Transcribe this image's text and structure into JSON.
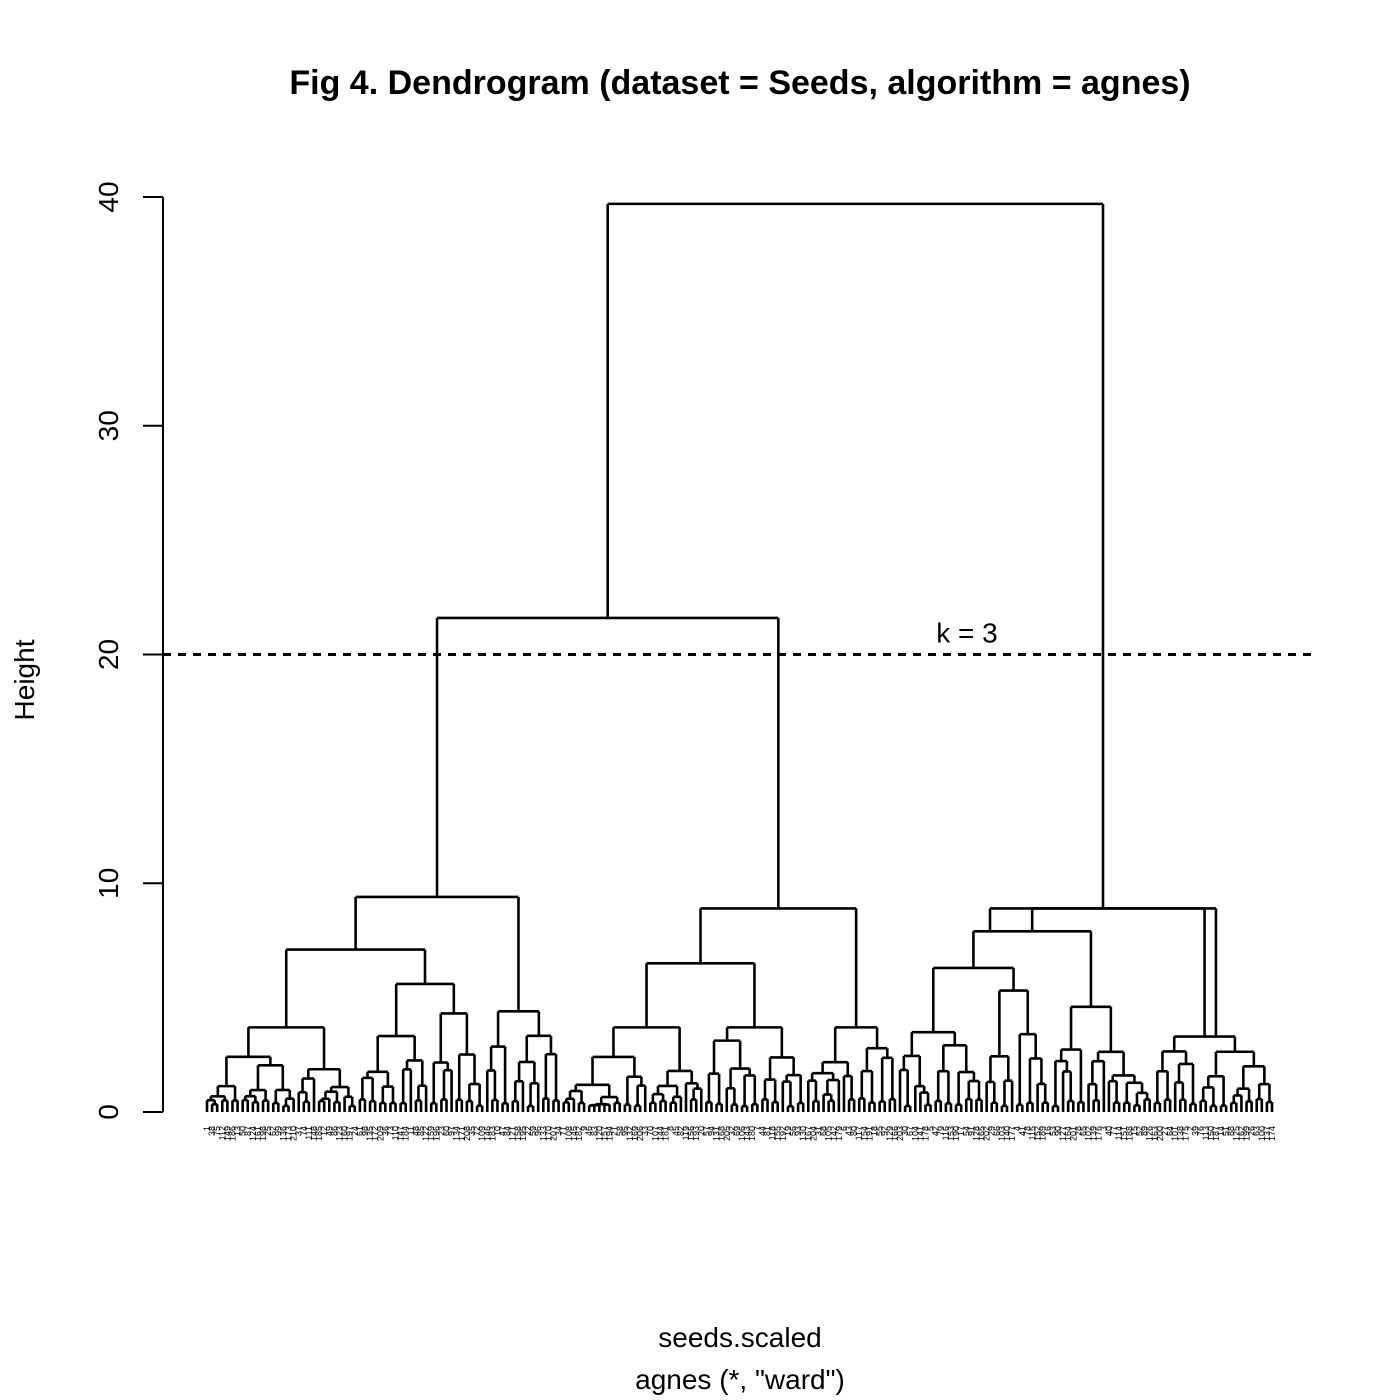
{
  "chart_data": {
    "type": "dendrogram",
    "title": "Fig 4. Dendrogram (dataset = Seeds, algorithm = agnes)",
    "ylabel": "Height",
    "xlabel": "seeds.scaled",
    "sublabel": "agnes (*, \"ward\")",
    "ylim": [
      0,
      40
    ],
    "yticks": [
      "0",
      "10",
      "20",
      "30",
      "40"
    ],
    "n_leaves": 210,
    "cut": {
      "height": 20,
      "label": "k = 3"
    },
    "merges": [
      {
        "height": 39.7,
        "note": "root: joins the left two clusters with the right cluster"
      },
      {
        "height": 21.6,
        "note": "joins the left and middle clusters"
      },
      {
        "height": 9.4,
        "note": "left cluster"
      },
      {
        "height": 8.9,
        "note": "middle cluster"
      },
      {
        "height": 8.9,
        "note": "right cluster"
      },
      {
        "height": 7.1
      },
      {
        "height": 6.5
      },
      {
        "height": 5.6
      },
      {
        "height": 4.4
      },
      {
        "height": 3.7
      },
      {
        "height": 3.7
      },
      {
        "height": 2.9
      },
      {
        "height": 2.2
      }
    ]
  }
}
